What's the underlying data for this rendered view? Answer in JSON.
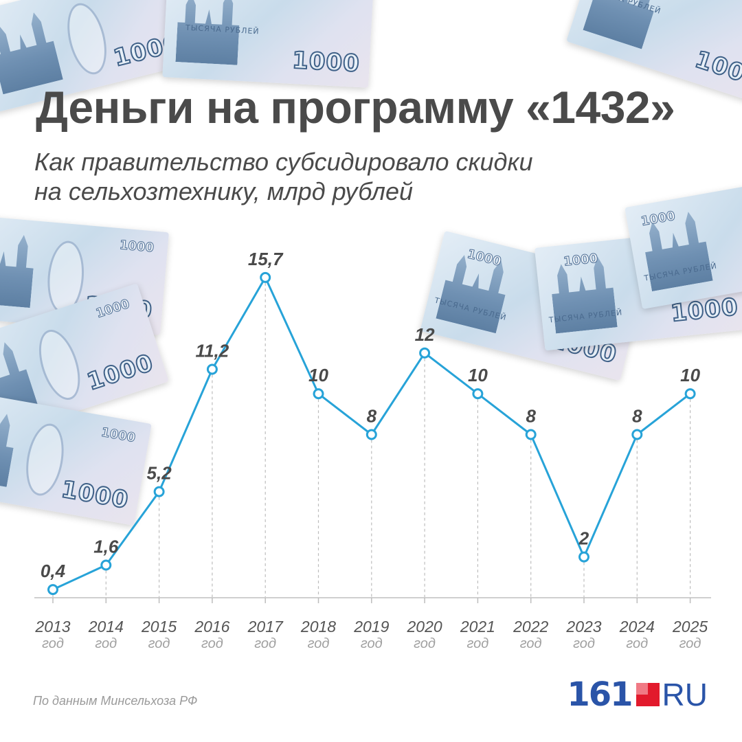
{
  "header": {
    "title": "Деньги на программу «1432»",
    "subtitle_line1": "Как правительство субсидировало скидки",
    "subtitle_line2": "на сельхозтехнику, млрд рублей"
  },
  "footer": {
    "source": "По данным Минсельхоза РФ",
    "logo_number": "161",
    "logo_suffix": "RU"
  },
  "decor": {
    "banknote_denomination": "1000",
    "banknote_words": "ТЫСЯЧА РУБЛЕЙ"
  },
  "colors": {
    "line": "#27a3d8",
    "text": "#4a4a4a",
    "logo_blue": "#2a54a8",
    "logo_red": "#e21a2c"
  },
  "chart_data": {
    "type": "line",
    "x": [
      "2013",
      "2014",
      "2015",
      "2016",
      "2017",
      "2018",
      "2019",
      "2020",
      "2021",
      "2022",
      "2023",
      "2024",
      "2025"
    ],
    "x_unit": "год",
    "values": [
      0.4,
      1.6,
      5.2,
      11.2,
      15.7,
      10,
      8,
      12,
      10,
      8,
      2,
      8,
      10
    ],
    "value_labels": [
      "0,4",
      "1,6",
      "5,2",
      "11,2",
      "15,7",
      "10",
      "8",
      "12",
      "10",
      "8",
      "2",
      "8",
      "10"
    ],
    "ylim": [
      0,
      16
    ],
    "grid": false,
    "legend": "none"
  }
}
